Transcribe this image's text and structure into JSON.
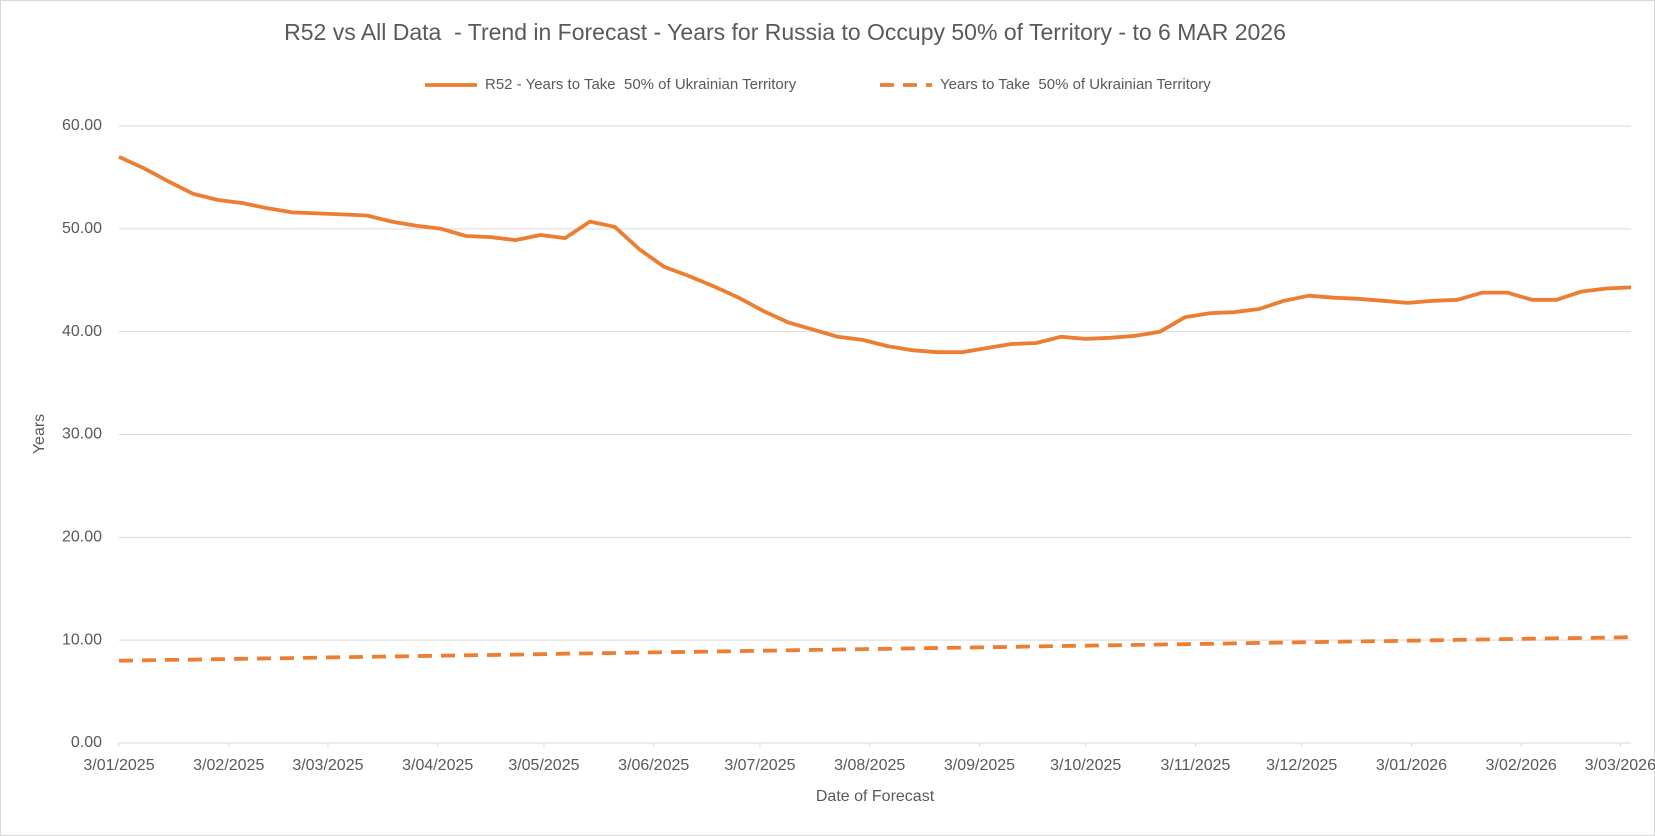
{
  "chart_data": {
    "type": "line",
    "title": "R52 vs All Data  - Trend in Forecast - Years for Russia to Occupy 50% of Territory - to 6 MAR 2026",
    "x_label": "Date of Forecast",
    "y_label": "Years",
    "x": [
      "3/01/2025",
      "10/01/2025",
      "17/01/2025",
      "24/01/2025",
      "31/01/2025",
      "7/02/2025",
      "14/02/2025",
      "21/02/2025",
      "28/02/2025",
      "7/03/2025",
      "14/03/2025",
      "21/03/2025",
      "28/03/2025",
      "4/04/2025",
      "11/04/2025",
      "18/04/2025",
      "25/04/2025",
      "2/05/2025",
      "9/05/2025",
      "16/05/2025",
      "23/05/2025",
      "30/05/2025",
      "6/06/2025",
      "13/06/2025",
      "20/06/2025",
      "27/06/2025",
      "4/07/2025",
      "11/07/2025",
      "18/07/2025",
      "25/07/2025",
      "1/08/2025",
      "8/08/2025",
      "15/08/2025",
      "22/08/2025",
      "29/08/2025",
      "5/09/2025",
      "12/09/2025",
      "19/09/2025",
      "26/09/2025",
      "3/10/2025",
      "10/10/2025",
      "17/10/2025",
      "24/10/2025",
      "31/10/2025",
      "7/11/2025",
      "14/11/2025",
      "21/11/2025",
      "28/11/2025",
      "5/12/2025",
      "12/12/2025",
      "19/12/2025",
      "26/12/2025",
      "2/01/2026",
      "9/01/2026",
      "16/01/2026",
      "23/01/2026",
      "30/01/2026",
      "6/02/2026",
      "13/02/2026",
      "20/02/2026",
      "27/02/2026",
      "6/03/2026"
    ],
    "series": [
      {
        "name": "R52 - Years to Take  50% of Ukrainian Territory",
        "color": "#ED7D31",
        "dashed": false,
        "values": [
          57.0,
          55.9,
          54.6,
          53.4,
          52.8,
          52.5,
          52.0,
          51.6,
          51.5,
          51.4,
          51.3,
          50.7,
          50.3,
          50.0,
          49.3,
          49.2,
          48.9,
          49.4,
          49.1,
          50.7,
          50.2,
          48.0,
          46.3,
          45.4,
          44.4,
          43.3,
          42.0,
          40.9,
          40.2,
          39.5,
          39.2,
          38.6,
          38.2,
          38.0,
          38.0,
          38.4,
          38.8,
          38.9,
          39.5,
          39.3,
          39.4,
          39.6,
          40.0,
          41.4,
          41.8,
          41.9,
          42.2,
          43.0,
          43.5,
          43.3,
          43.2,
          43.0,
          42.8,
          43.0,
          43.1,
          43.8,
          43.8,
          43.1,
          43.1,
          43.9,
          44.2,
          44.3
        ]
      },
      {
        "name": "Years to Take  50% of Ukrainian Territory",
        "color": "#ED7D31",
        "dashed": true,
        "values": [
          8.0,
          8.04,
          8.08,
          8.11,
          8.15,
          8.19,
          8.23,
          8.26,
          8.3,
          8.34,
          8.38,
          8.41,
          8.45,
          8.49,
          8.53,
          8.56,
          8.6,
          8.64,
          8.68,
          8.71,
          8.75,
          8.79,
          8.83,
          8.86,
          8.9,
          8.94,
          8.98,
          9.01,
          9.05,
          9.09,
          9.13,
          9.16,
          9.2,
          9.24,
          9.28,
          9.31,
          9.35,
          9.39,
          9.43,
          9.46,
          9.5,
          9.54,
          9.58,
          9.61,
          9.65,
          9.69,
          9.73,
          9.76,
          9.8,
          9.84,
          9.88,
          9.91,
          9.95,
          9.99,
          10.03,
          10.06,
          10.1,
          10.14,
          10.18,
          10.21,
          10.25,
          10.29
        ]
      }
    ],
    "xlim": [
      "3/01/2025",
      "6/03/2026"
    ],
    "xticks": [
      "3/01/2025",
      "3/02/2025",
      "3/03/2025",
      "3/04/2025",
      "3/05/2025",
      "3/06/2025",
      "3/07/2025",
      "3/08/2025",
      "3/09/2025",
      "3/10/2025",
      "3/11/2025",
      "3/12/2025",
      "3/01/2026",
      "3/02/2026",
      "3/03/2026"
    ],
    "ylim": [
      0,
      60
    ],
    "yticks": [
      {
        "value": 0,
        "label": "0.00"
      },
      {
        "value": 10,
        "label": "10.00"
      },
      {
        "value": 20,
        "label": "20.00"
      },
      {
        "value": 30,
        "label": "30.00"
      },
      {
        "value": 40,
        "label": "40.00"
      },
      {
        "value": 50,
        "label": "50.00"
      },
      {
        "value": 60,
        "label": "60.00"
      }
    ],
    "grid": true,
    "legend": "top"
  }
}
